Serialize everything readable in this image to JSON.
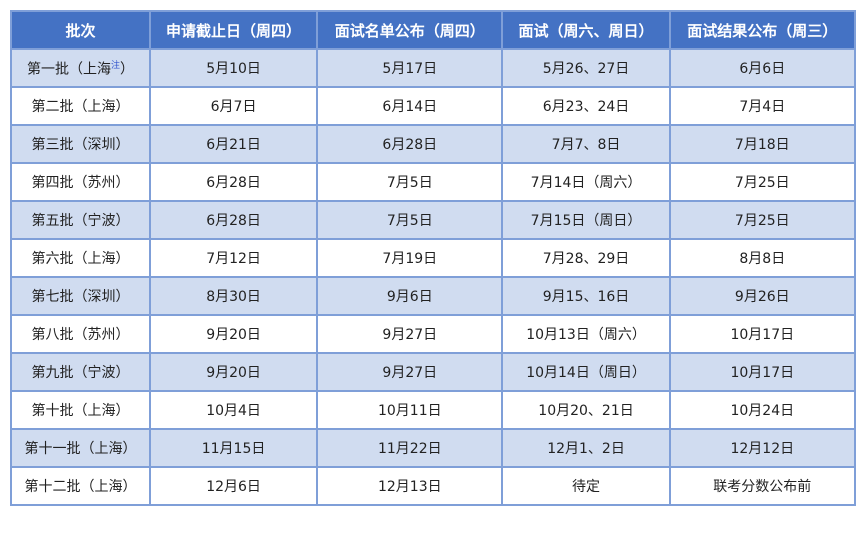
{
  "headers": [
    "批次",
    "申请截止日（周四）",
    "面试名单公布（周四）",
    "面试（周六、周日）",
    "面试结果公布（周三）"
  ],
  "note_mark": "注",
  "rows": [
    [
      "第一批（上海",
      "5月10日",
      "5月17日",
      "5月26、27日",
      "6月6日"
    ],
    [
      "第二批（上海）",
      "6月7日",
      "6月14日",
      "6月23、24日",
      "7月4日"
    ],
    [
      "第三批（深圳）",
      "6月21日",
      "6月28日",
      "7月7、8日",
      "7月18日"
    ],
    [
      "第四批（苏州）",
      "6月28日",
      "7月5日",
      "7月14日（周六）",
      "7月25日"
    ],
    [
      "第五批（宁波）",
      "6月28日",
      "7月5日",
      "7月15日（周日）",
      "7月25日"
    ],
    [
      "第六批（上海）",
      "7月12日",
      "7月19日",
      "7月28、29日",
      "8月8日"
    ],
    [
      "第七批（深圳）",
      "8月30日",
      "9月6日",
      "9月15、16日",
      "9月26日"
    ],
    [
      "第八批（苏州）",
      "9月20日",
      "9月27日",
      "10月13日（周六）",
      "10月17日"
    ],
    [
      "第九批（宁波）",
      "9月20日",
      "9月27日",
      "10月14日（周日）",
      "10月17日"
    ],
    [
      "第十批（上海）",
      "10月4日",
      "10月11日",
      "10月20、21日",
      "10月24日"
    ],
    [
      "第十一批（上海）",
      "11月15日",
      "11月22日",
      "12月1、2日",
      "12月12日"
    ],
    [
      "第十二批（上海）",
      "12月6日",
      "12月13日",
      "待定",
      "联考分数公布前"
    ]
  ],
  "row1_suffix": "）"
}
